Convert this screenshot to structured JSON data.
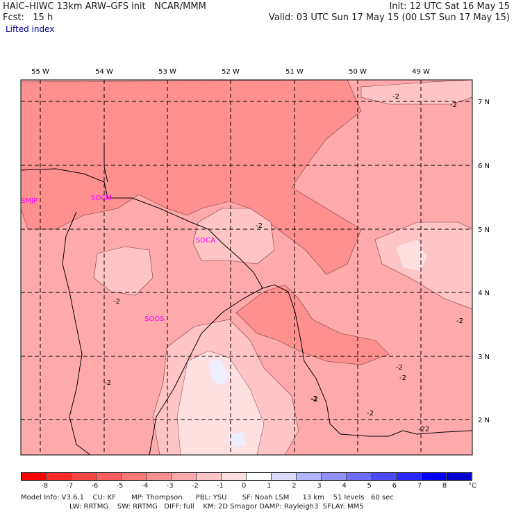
{
  "header": {
    "title": "HAIC–HIWC 13km ARW–GFS init   NCAR/MMM",
    "init": "Init: 12 UTC Sat 16 May 15",
    "fcst": "Fcst:   15 h",
    "valid": "Valid: 03 UTC Sun 17 May 15 (00 LST Sun 17 May 15)",
    "field": "Lifted index"
  },
  "axes": {
    "lon_labels": [
      "55 W",
      "54 W",
      "53 W",
      "52 W",
      "51 W",
      "50 W",
      "49 W"
    ],
    "lat_labels": [
      "7 N",
      "6 N",
      "5 N",
      "4 N",
      "3 N",
      "2 N"
    ]
  },
  "stations": [
    "SMJP",
    "SOCM",
    "SOCA",
    "SOOS"
  ],
  "contour_labels": [
    "-2",
    "-2",
    "-2",
    "-2",
    "-2",
    "-2",
    "-2",
    "-2",
    "-2",
    "-2",
    "-2",
    "-2",
    "2"
  ],
  "colorbar": {
    "labels": [
      "-8",
      "-7",
      "-6",
      "-5",
      "-4",
      "-3",
      "-2",
      "-1",
      "0",
      "1",
      "2",
      "3",
      "4",
      "5",
      "6",
      "7",
      "8"
    ],
    "unit": "°C",
    "colors": [
      "#ff0000",
      "#ff2a2a",
      "#ff4646",
      "#ff5e5e",
      "#ff7878",
      "#ff9090",
      "#ffaaaa",
      "#ffc4c4",
      "#ffe0e0",
      "#ffffff",
      "#dcdcff",
      "#b4b4ff",
      "#9090ff",
      "#6e6eff",
      "#4a4aff",
      "#2828ff",
      "#0000ff",
      "#0000cc"
    ]
  },
  "footer": {
    "line1": "Model Info: V3.6.1    CU: KF       MP: Thompson      PBL: YSU       SF: Noah LSM      13 km    51 levels   60 sec",
    "line2": "LW: RRTMG    SW: RRTMG   DIFF: full    KM: 2D Smagor DAMP: Rayleigh3  SFLAY: MM5"
  }
}
